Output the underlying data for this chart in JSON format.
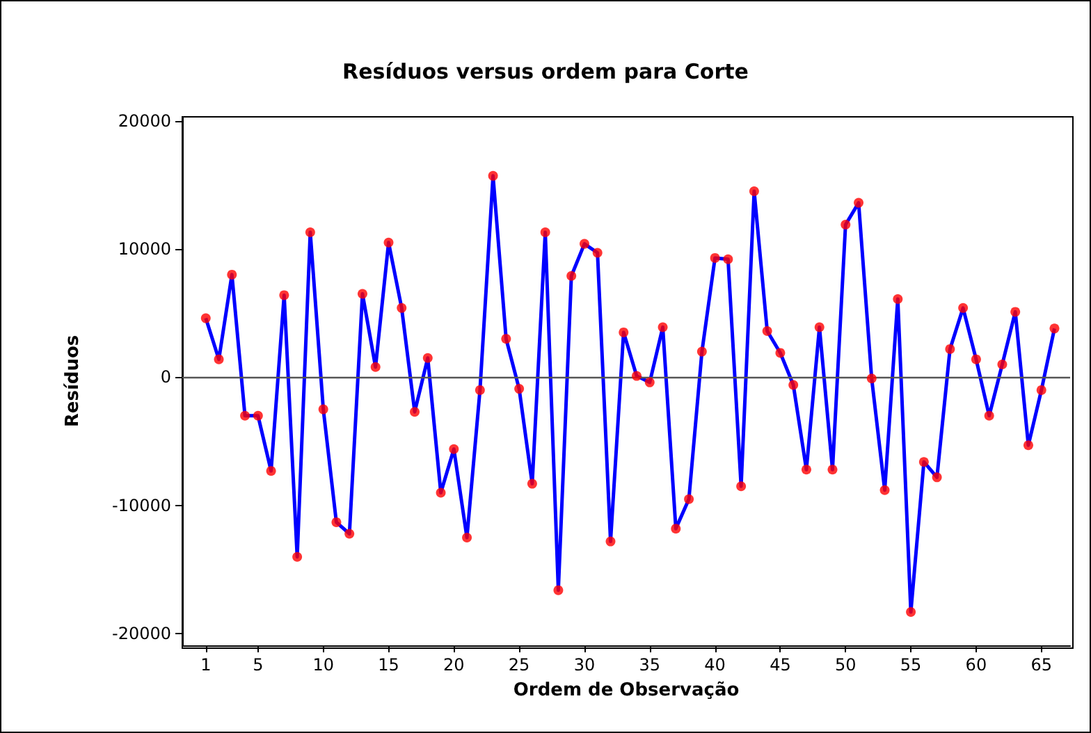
{
  "chart_data": {
    "type": "line",
    "title": "Resíduos versus ordem para Corte",
    "xlabel": "Ordem de Observação",
    "ylabel": "Resíduos",
    "x": [
      1,
      2,
      3,
      4,
      5,
      6,
      7,
      8,
      9,
      10,
      11,
      12,
      13,
      14,
      15,
      16,
      17,
      18,
      19,
      20,
      21,
      22,
      23,
      24,
      25,
      26,
      27,
      28,
      29,
      30,
      31,
      32,
      33,
      34,
      35,
      36,
      37,
      38,
      39,
      40,
      41,
      42,
      43,
      44,
      45,
      46,
      47,
      48,
      49,
      50,
      51,
      52,
      53,
      54,
      55,
      56,
      57,
      58,
      59,
      60,
      61,
      62,
      63,
      64,
      65,
      66
    ],
    "series": [
      {
        "color": "#0000ff",
        "marker": "none",
        "values": [
          4600,
          1400,
          8000,
          -3000,
          -3000,
          -7300,
          6400,
          -14000,
          11300,
          -2500,
          -11300,
          -12200,
          6500,
          800,
          10500,
          5400,
          -2700,
          1500,
          -9000,
          -5600,
          -12500,
          -1000,
          15700,
          3000,
          -900,
          -8300,
          11300,
          -16600,
          7900,
          10400,
          9700,
          -12800,
          3500,
          100,
          -400,
          3900,
          -11800,
          -9500,
          2000,
          9300,
          9200,
          -8500,
          14500,
          3600,
          1900,
          -600,
          -7200,
          3900,
          -7200,
          11900,
          13600,
          -100,
          -8800,
          6100,
          -18300,
          -6600,
          -7800,
          2200,
          5400,
          1400,
          -3000,
          1000,
          5100,
          -5300,
          -1000,
          3800
        ]
      },
      {
        "type": "scatter",
        "color": "#ff0000",
        "marker": "circle",
        "values": [
          4600,
          1400,
          8000,
          -3000,
          -3000,
          -7300,
          6400,
          -14000,
          11300,
          -2500,
          -11300,
          -12200,
          6500,
          800,
          10500,
          5400,
          -2700,
          1500,
          -9000,
          -5600,
          -12500,
          -1000,
          15700,
          3000,
          -900,
          -8300,
          11300,
          -16600,
          7900,
          10400,
          9700,
          -12800,
          3500,
          100,
          -400,
          3900,
          -11800,
          -9500,
          2000,
          9300,
          9200,
          -8500,
          14500,
          3600,
          1900,
          -600,
          -7200,
          3900,
          -7200,
          11900,
          13600,
          -100,
          -8800,
          6100,
          -18300,
          -6600,
          -7800,
          2200,
          5400,
          1400,
          -3000,
          1000,
          5100,
          -5300,
          -1000,
          3800
        ]
      }
    ],
    "xlim": [
      -0.8,
      67.2
    ],
    "xticks": [
      1,
      5,
      10,
      15,
      20,
      25,
      30,
      35,
      40,
      45,
      50,
      55,
      60,
      65
    ],
    "ylim": [
      -20900,
      20300
    ],
    "yticks": [
      -20000,
      -10000,
      0,
      10000,
      20000
    ],
    "ref_lines": [
      {
        "axis": "y",
        "value": 0,
        "color": "#555555"
      }
    ],
    "grid": false
  }
}
